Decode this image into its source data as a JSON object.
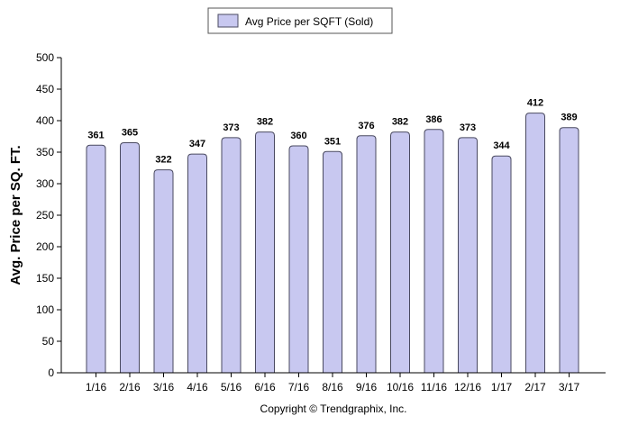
{
  "chart_data": {
    "type": "bar",
    "categories": [
      "1/16",
      "2/16",
      "3/16",
      "4/16",
      "5/16",
      "6/16",
      "7/16",
      "8/16",
      "9/16",
      "10/16",
      "11/16",
      "12/16",
      "1/17",
      "2/17",
      "3/17"
    ],
    "series": [
      {
        "name": "Avg Price per SQFT (Sold)",
        "values": [
          361,
          365,
          322,
          347,
          373,
          382,
          360,
          351,
          376,
          382,
          386,
          373,
          344,
          412,
          389
        ]
      }
    ],
    "data_labels": [
      "361",
      "365",
      "322",
      "347",
      "373",
      "382",
      "360",
      "351",
      "376",
      "382",
      "386",
      "373",
      "344",
      "412",
      "389"
    ],
    "ylabel": "Avg. Price per SQ. FT.",
    "xlabel": "",
    "ylim": [
      0,
      500
    ],
    "yticks": [
      0,
      50,
      100,
      150,
      200,
      250,
      300,
      350,
      400,
      450,
      500
    ],
    "ytick_labels": [
      "0",
      "50",
      "100",
      "150",
      "200",
      "250",
      "300",
      "350",
      "400",
      "450",
      "500"
    ],
    "grid": false,
    "legend_position": "top-center",
    "bar_color": "#c8c8f0",
    "bar_edge_color": "#4a4a60"
  },
  "legend": {
    "label": "Avg Price per SQFT (Sold)"
  },
  "footer": {
    "copyright": "Copyright © Trendgraphix, Inc."
  }
}
